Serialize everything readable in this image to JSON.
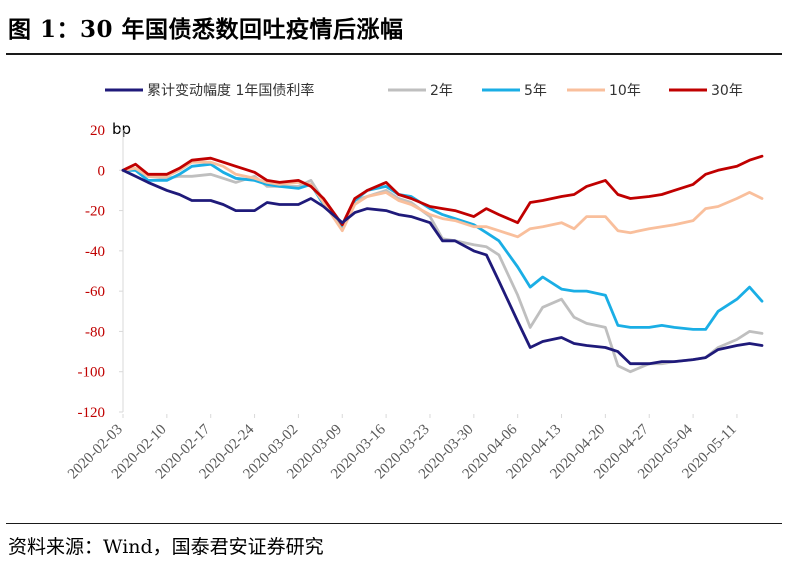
{
  "figure": {
    "title": "图 1：30 年国债悉数回吐疫情后涨幅",
    "source": "资料来源：Wind，国泰君安证券研究"
  },
  "chart_data": {
    "type": "line",
    "title": "",
    "xlabel": "",
    "ylabel": "bp",
    "ylim": [
      -120,
      20
    ],
    "yticks": [
      20,
      0,
      -20,
      -40,
      -60,
      -80,
      -100,
      -120
    ],
    "ytick_color": "#c00000",
    "x_tick_labels": [
      "2020-02-03",
      "2020-02-10",
      "2020-02-17",
      "2020-02-24",
      "2020-03-02",
      "2020-03-09",
      "2020-03-16",
      "2020-03-23",
      "2020-03-30",
      "2020-04-06",
      "2020-04-13",
      "2020-04-20",
      "2020-04-27",
      "2020-05-04",
      "2020-05-11"
    ],
    "x_range": [
      "2020-02-03",
      "2020-05-15"
    ],
    "grid": false,
    "legend_position": "top",
    "series": [
      {
        "name": "累计变动幅度 1年国债利率",
        "color": "#1f1a7a",
        "x": [
          "2020-02-03",
          "2020-02-05",
          "2020-02-07",
          "2020-02-10",
          "2020-02-12",
          "2020-02-14",
          "2020-02-17",
          "2020-02-19",
          "2020-02-21",
          "2020-02-24",
          "2020-02-26",
          "2020-02-28",
          "2020-03-02",
          "2020-03-04",
          "2020-03-06",
          "2020-03-09",
          "2020-03-11",
          "2020-03-13",
          "2020-03-16",
          "2020-03-18",
          "2020-03-20",
          "2020-03-23",
          "2020-03-25",
          "2020-03-27",
          "2020-03-30",
          "2020-04-01",
          "2020-04-03",
          "2020-04-06",
          "2020-04-08",
          "2020-04-10",
          "2020-04-13",
          "2020-04-15",
          "2020-04-17",
          "2020-04-20",
          "2020-04-22",
          "2020-04-24",
          "2020-04-27",
          "2020-04-29",
          "2020-05-01",
          "2020-05-04",
          "2020-05-06",
          "2020-05-08",
          "2020-05-11",
          "2020-05-13",
          "2020-05-15"
        ],
        "values": [
          0,
          -3,
          -6,
          -10,
          -12,
          -15,
          -15,
          -17,
          -20,
          -20,
          -16,
          -17,
          -17,
          -14,
          -18,
          -26,
          -21,
          -19,
          -20,
          -22,
          -23,
          -26,
          -35,
          -35,
          -40,
          -42,
          -55,
          -75,
          -88,
          -85,
          -83,
          -86,
          -87,
          -88,
          -90,
          -96,
          -96,
          -95,
          -95,
          -94,
          -93,
          -89,
          -87,
          -86,
          -87
        ]
      },
      {
        "name": "2年",
        "color": "#bfbfbf",
        "x": [
          "2020-02-03",
          "2020-02-05",
          "2020-02-07",
          "2020-02-10",
          "2020-02-12",
          "2020-02-14",
          "2020-02-17",
          "2020-02-19",
          "2020-02-21",
          "2020-02-24",
          "2020-02-26",
          "2020-02-28",
          "2020-03-02",
          "2020-03-04",
          "2020-03-06",
          "2020-03-09",
          "2020-03-11",
          "2020-03-13",
          "2020-03-16",
          "2020-03-18",
          "2020-03-20",
          "2020-03-23",
          "2020-03-25",
          "2020-03-27",
          "2020-03-30",
          "2020-04-01",
          "2020-04-03",
          "2020-04-06",
          "2020-04-08",
          "2020-04-10",
          "2020-04-13",
          "2020-04-15",
          "2020-04-17",
          "2020-04-20",
          "2020-04-22",
          "2020-04-24",
          "2020-04-27",
          "2020-04-29",
          "2020-05-01",
          "2020-05-04",
          "2020-05-06",
          "2020-05-08",
          "2020-05-11",
          "2020-05-13",
          "2020-05-15"
        ],
        "values": [
          0,
          1,
          -3,
          -4,
          -3,
          -3,
          -2,
          -4,
          -6,
          -3,
          -8,
          -8,
          -8,
          -5,
          -15,
          -28,
          -15,
          -13,
          -10,
          -14,
          -16,
          -23,
          -34,
          -35,
          -37,
          -38,
          -42,
          -62,
          -78,
          -68,
          -64,
          -73,
          -76,
          -78,
          -97,
          -100,
          -96,
          -96,
          -95,
          -94,
          -93,
          -88,
          -84,
          -80,
          -81
        ]
      },
      {
        "name": "5年",
        "color": "#1aaee5",
        "x": [
          "2020-02-03",
          "2020-02-05",
          "2020-02-07",
          "2020-02-10",
          "2020-02-12",
          "2020-02-14",
          "2020-02-17",
          "2020-02-19",
          "2020-02-21",
          "2020-02-24",
          "2020-02-26",
          "2020-02-28",
          "2020-03-02",
          "2020-03-04",
          "2020-03-06",
          "2020-03-09",
          "2020-03-11",
          "2020-03-13",
          "2020-03-16",
          "2020-03-18",
          "2020-03-20",
          "2020-03-23",
          "2020-03-25",
          "2020-03-27",
          "2020-03-30",
          "2020-04-01",
          "2020-04-03",
          "2020-04-06",
          "2020-04-08",
          "2020-04-10",
          "2020-04-13",
          "2020-04-15",
          "2020-04-17",
          "2020-04-20",
          "2020-04-22",
          "2020-04-24",
          "2020-04-27",
          "2020-04-29",
          "2020-05-01",
          "2020-05-04",
          "2020-05-06",
          "2020-05-08",
          "2020-05-11",
          "2020-05-13",
          "2020-05-15"
        ],
        "values": [
          0,
          0,
          -5,
          -5,
          -2,
          2,
          3,
          -1,
          -4,
          -5,
          -7,
          -8,
          -9,
          -7,
          -17,
          -28,
          -15,
          -10,
          -8,
          -12,
          -13,
          -19,
          -22,
          -24,
          -27,
          -31,
          -35,
          -48,
          -58,
          -53,
          -59,
          -60,
          -60,
          -62,
          -77,
          -78,
          -78,
          -77,
          -78,
          -79,
          -79,
          -70,
          -64,
          -58,
          -65
        ]
      },
      {
        "name": "10年",
        "color": "#f9bf9c",
        "x": [
          "2020-02-03",
          "2020-02-05",
          "2020-02-07",
          "2020-02-10",
          "2020-02-12",
          "2020-02-14",
          "2020-02-17",
          "2020-02-19",
          "2020-02-21",
          "2020-02-24",
          "2020-02-26",
          "2020-02-28",
          "2020-03-02",
          "2020-03-04",
          "2020-03-06",
          "2020-03-09",
          "2020-03-11",
          "2020-03-13",
          "2020-03-16",
          "2020-03-18",
          "2020-03-20",
          "2020-03-23",
          "2020-03-25",
          "2020-03-27",
          "2020-03-30",
          "2020-04-01",
          "2020-04-03",
          "2020-04-06",
          "2020-04-08",
          "2020-04-10",
          "2020-04-13",
          "2020-04-15",
          "2020-04-17",
          "2020-04-20",
          "2020-04-22",
          "2020-04-24",
          "2020-04-27",
          "2020-04-29",
          "2020-05-01",
          "2020-05-04",
          "2020-05-06",
          "2020-05-08",
          "2020-05-11",
          "2020-05-13",
          "2020-05-15"
        ],
        "values": [
          0,
          1,
          -3,
          -3,
          0,
          4,
          4,
          2,
          -2,
          -4,
          -6,
          -7,
          -6,
          -7,
          -16,
          -30,
          -17,
          -13,
          -11,
          -15,
          -17,
          -22,
          -24,
          -25,
          -28,
          -28,
          -30,
          -33,
          -29,
          -28,
          -26,
          -29,
          -23,
          -23,
          -30,
          -31,
          -29,
          -28,
          -27,
          -25,
          -19,
          -18,
          -14,
          -11,
          -14
        ]
      },
      {
        "name": "30年",
        "color": "#c00000",
        "x": [
          "2020-02-03",
          "2020-02-05",
          "2020-02-07",
          "2020-02-10",
          "2020-02-12",
          "2020-02-14",
          "2020-02-17",
          "2020-02-19",
          "2020-02-21",
          "2020-02-24",
          "2020-02-26",
          "2020-02-28",
          "2020-03-02",
          "2020-03-04",
          "2020-03-06",
          "2020-03-09",
          "2020-03-11",
          "2020-03-13",
          "2020-03-16",
          "2020-03-18",
          "2020-03-20",
          "2020-03-23",
          "2020-03-25",
          "2020-03-27",
          "2020-03-30",
          "2020-04-01",
          "2020-04-03",
          "2020-04-06",
          "2020-04-08",
          "2020-04-10",
          "2020-04-13",
          "2020-04-15",
          "2020-04-17",
          "2020-04-20",
          "2020-04-22",
          "2020-04-24",
          "2020-04-27",
          "2020-04-29",
          "2020-05-01",
          "2020-05-04",
          "2020-05-06",
          "2020-05-08",
          "2020-05-11",
          "2020-05-13",
          "2020-05-15"
        ],
        "values": [
          0,
          3,
          -2,
          -2,
          1,
          5,
          6,
          4,
          2,
          -1,
          -5,
          -6,
          -5,
          -8,
          -14,
          -27,
          -14,
          -10,
          -6,
          -12,
          -14,
          -18,
          -19,
          -20,
          -23,
          -19,
          -22,
          -26,
          -16,
          -15,
          -13,
          -12,
          -8,
          -5,
          -12,
          -14,
          -13,
          -12,
          -10,
          -7,
          -2,
          0,
          2,
          5,
          7
        ]
      }
    ]
  }
}
